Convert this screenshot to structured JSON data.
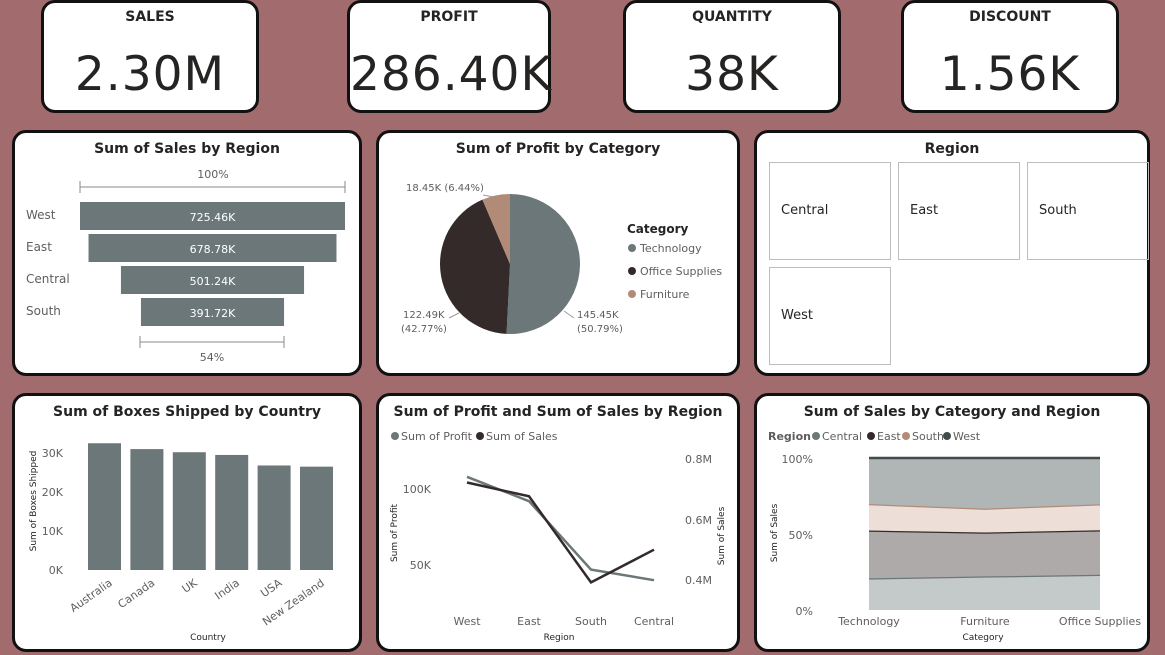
{
  "kpis": [
    {
      "label": "SALES",
      "value": "2.30M"
    },
    {
      "label": "PROFIT",
      "value": "286.40K"
    },
    {
      "label": "QUANTITY",
      "value": "38K"
    },
    {
      "label": "DISCOUNT",
      "value": "1.56K"
    }
  ],
  "funnel": {
    "title": "Sum of Sales by Region",
    "top_pct": "100%",
    "bottom_pct": "54%"
  },
  "pie": {
    "title": "Sum of Profit by Category",
    "legend_title": "Category",
    "slice_labels": [
      "145.45K",
      "(50.79%)",
      "122.49K",
      "(42.77%)",
      "18.45K (6.44%)"
    ]
  },
  "slicer": {
    "title": "Region",
    "items": [
      "Central",
      "East",
      "South",
      "West"
    ]
  },
  "boxes": {
    "title": "Sum of Boxes Shipped by Country",
    "ylabel": "Sum of Boxes Shipped",
    "xlabel": "Country",
    "ticks": [
      "0K",
      "10K",
      "20K",
      "30K"
    ]
  },
  "combo": {
    "title": "Sum of Profit and Sum of Sales by Region",
    "legend": [
      "Sum of Profit",
      "Sum of Sales"
    ],
    "ylabel_left": "Sum of Profit",
    "ylabel_right": "Sum of Sales",
    "xlabel": "Region",
    "left_ticks": [
      "50K",
      "100K"
    ],
    "right_ticks": [
      "0.4M",
      "0.6M",
      "0.8M"
    ]
  },
  "area": {
    "title": "Sum of Sales by Category and Region",
    "legend_title": "Region",
    "legend": [
      "Central",
      "East",
      "South",
      "West"
    ],
    "ylabel": "Sum of Sales",
    "xlabel": "Category",
    "ticks": [
      "0%",
      "50%",
      "100%"
    ]
  },
  "colors": {
    "technology": "#6b7778",
    "office": "#342a2a",
    "furniture": "#b28b78",
    "central": "#6b7778",
    "east": "#342a2a",
    "south": "#b28b78",
    "west": "#424b4c",
    "background": "#a26b6d"
  },
  "chart_data": [
    {
      "type": "bar",
      "title": "Sum of Sales by Region",
      "categories": [
        "West",
        "East",
        "Central",
        "South"
      ],
      "values": [
        725.46,
        678.78,
        501.24,
        391.72
      ],
      "value_labels": [
        "725.46K",
        "678.78K",
        "501.24K",
        "391.72K"
      ],
      "unit": "K"
    },
    {
      "type": "pie",
      "title": "Sum of Profit by Category",
      "categories": [
        "Technology",
        "Office Supplies",
        "Furniture"
      ],
      "values": [
        145.45,
        122.49,
        18.45
      ],
      "percents": [
        50.79,
        42.77,
        6.44
      ],
      "unit": "K"
    },
    {
      "type": "bar",
      "title": "Sum of Boxes Shipped by Country",
      "categories": [
        "Australia",
        "Canada",
        "UK",
        "India",
        "USA",
        "New Zealand"
      ],
      "values": [
        32.5,
        31.0,
        30.2,
        29.5,
        26.8,
        26.5
      ],
      "ylim": [
        0,
        35
      ],
      "unit": "K",
      "xlabel": "Country",
      "ylabel": "Sum of Boxes Shipped"
    },
    {
      "type": "line",
      "title": "Sum of Profit and Sum of Sales by Region",
      "categories": [
        "West",
        "East",
        "South",
        "Central"
      ],
      "series": [
        {
          "name": "Sum of Profit",
          "axis": "left",
          "values": [
            108,
            92,
            47,
            40
          ]
        },
        {
          "name": "Sum of Sales",
          "axis": "right",
          "values": [
            0.725,
            0.679,
            0.392,
            0.501
          ]
        }
      ],
      "ylim_left": [
        30,
        130
      ],
      "ylim_right": [
        0.3,
        0.9
      ],
      "xlabel": "Region",
      "ylabel_left": "Sum of Profit",
      "ylabel_right": "Sum of Sales"
    },
    {
      "type": "area",
      "title": "Sum of Sales by Category and Region",
      "categories": [
        "Technology",
        "Furniture",
        "Office Supplies"
      ],
      "stacking": "percent",
      "series": [
        {
          "name": "Central",
          "values": [
            20.8,
            22.1,
            23.2
          ]
        },
        {
          "name": "East",
          "values": [
            31.5,
            28.9,
            29.3
          ]
        },
        {
          "name": "South",
          "values": [
            17.4,
            15.7,
            17.1
          ]
        },
        {
          "name": "West",
          "values": [
            30.3,
            33.3,
            30.4
          ]
        }
      ],
      "ylim": [
        0,
        100
      ],
      "xlabel": "Category",
      "ylabel": "Sum of Sales"
    }
  ]
}
